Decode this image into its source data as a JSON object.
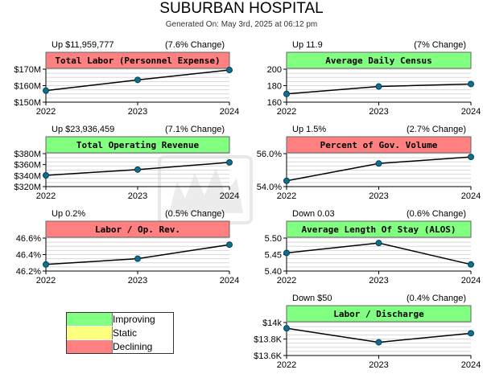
{
  "header": {
    "title": "SUBURBAN HOSPITAL",
    "subtitle": "Generated On: May 3rd, 2025 at 06:12 pm"
  },
  "legend": [
    {
      "label": "Improving",
      "color": "#80ff80"
    },
    {
      "label": "Static",
      "color": "#ffff80"
    },
    {
      "label": "Declining",
      "color": "#ff8080"
    }
  ],
  "colors": {
    "improving": "#80ff80",
    "declining": "#ff8080",
    "marker": "#0f6f8f"
  },
  "chart_data": [
    {
      "type": "line",
      "title": "Total Labor (Personnel Expense)",
      "status": "declining",
      "change_text": "Up $11,959,777",
      "pct_text": "(7.6% Change)",
      "x": [
        "2022",
        "2023",
        "2024"
      ],
      "values": [
        157,
        163.5,
        169.5
      ],
      "ylim": [
        150,
        170
      ],
      "yticks": [
        150,
        160,
        170
      ],
      "ytick_labels": [
        "$150M",
        "$160M",
        "$170M"
      ],
      "grid": true
    },
    {
      "type": "line",
      "title": "Average Daily Census",
      "status": "improving",
      "change_text": "Up 11.9",
      "pct_text": "(7% Change)",
      "x": [
        "2022",
        "2023",
        "2024"
      ],
      "values": [
        170,
        179,
        182
      ],
      "ylim": [
        160,
        200
      ],
      "yticks": [
        160,
        180,
        200
      ],
      "ytick_labels": [
        "160",
        "180",
        "200"
      ],
      "grid": true
    },
    {
      "type": "line",
      "title": "Total Operating Revenue",
      "status": "improving",
      "change_text": "Up $23,936,459",
      "pct_text": "(7.1% Change)",
      "x": [
        "2022",
        "2023",
        "2024"
      ],
      "values": [
        340.5,
        351,
        364
      ],
      "ylim": [
        320,
        380
      ],
      "yticks": [
        320,
        340,
        360,
        380
      ],
      "ytick_labels": [
        "$320M",
        "$340M",
        "$360M",
        "$380M"
      ],
      "grid": true
    },
    {
      "type": "line",
      "title": "Percent of Gov. Volume",
      "status": "declining",
      "change_text": "Up 1.5%",
      "pct_text": "(2.7% Change)",
      "x": [
        "2022",
        "2023",
        "2024"
      ],
      "values": [
        54.35,
        55.4,
        55.8
      ],
      "ylim": [
        54,
        56
      ],
      "yticks": [
        54,
        56
      ],
      "ytick_labels": [
        "54.0%",
        "56.0%"
      ],
      "grid": true
    },
    {
      "type": "line",
      "title": "Labor / Op. Rev.",
      "status": "declining",
      "change_text": "Up 0.2%",
      "pct_text": "(0.5% Change)",
      "x": [
        "2022",
        "2023",
        "2024"
      ],
      "values": [
        46.28,
        46.35,
        46.52
      ],
      "ylim": [
        46.2,
        46.6
      ],
      "yticks": [
        46.2,
        46.4,
        46.6
      ],
      "ytick_labels": [
        "46.2%",
        "46.4%",
        "46.6%"
      ],
      "grid": true
    },
    {
      "type": "line",
      "title": "Average Length Of Stay (ALOS)",
      "status": "improving",
      "change_text": "Down 0.03",
      "pct_text": "(0.6% Change)",
      "x": [
        "2022",
        "2023",
        "2024"
      ],
      "values": [
        5.455,
        5.485,
        5.42
      ],
      "ylim": [
        5.4,
        5.5
      ],
      "yticks": [
        5.4,
        5.45,
        5.5
      ],
      "ytick_labels": [
        "5.40",
        "5.45",
        "5.50"
      ],
      "grid": true
    },
    {
      "type": "line",
      "title": "Labor / Discharge",
      "status": "improving",
      "change_text": "Down $50",
      "pct_text": "(0.4% Change)",
      "x": [
        "2022",
        "2023",
        "2024"
      ],
      "values": [
        13.93,
        13.76,
        13.87
      ],
      "ylim": [
        13.6,
        14.0
      ],
      "yticks": [
        13.6,
        13.8,
        14.0
      ],
      "ytick_labels": [
        "$13.6K",
        "$13.8K",
        "$14k"
      ],
      "grid": true
    }
  ]
}
